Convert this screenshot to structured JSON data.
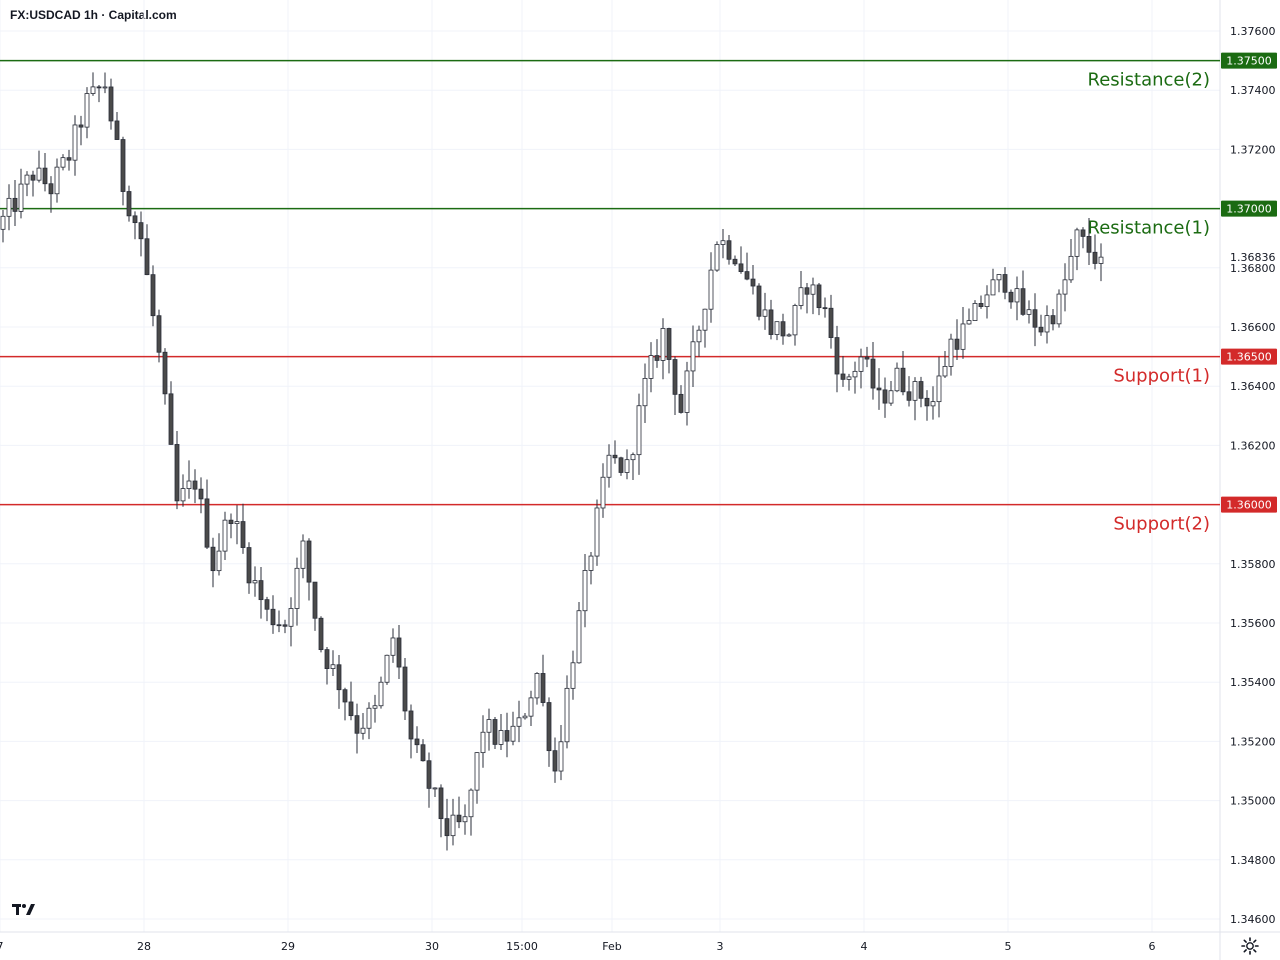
{
  "header": {
    "title": "FX:USDCAD 1h · Capital.com"
  },
  "chart_data": {
    "type": "candlestick",
    "title": "FX:USDCAD 1h · Capital.com",
    "ylim": [
      1.3455,
      1.3765
    ],
    "y_ticks": [
      "1.37600",
      "1.37400",
      "1.37200",
      "1.36800",
      "1.36600",
      "1.36400",
      "1.36200",
      "1.35800",
      "1.35600",
      "1.35400",
      "1.35200",
      "1.35000",
      "1.34800",
      "1.34600"
    ],
    "y_tick_values": [
      1.376,
      1.374,
      1.372,
      1.368,
      1.366,
      1.364,
      1.362,
      1.358,
      1.356,
      1.354,
      1.352,
      1.35,
      1.348,
      1.346
    ],
    "x_ticks": [
      {
        "label": "7",
        "index": 0
      },
      {
        "label": "28",
        "index": 24
      },
      {
        "label": "29",
        "index": 48
      },
      {
        "label": "30",
        "index": 72
      },
      {
        "label": "15:00",
        "index": 87
      },
      {
        "label": "Feb",
        "index": 102
      },
      {
        "label": "3",
        "index": 120
      },
      {
        "label": "4",
        "index": 144
      },
      {
        "label": "5",
        "index": 168
      },
      {
        "label": "6",
        "index": 192
      }
    ],
    "levels": [
      {
        "name": "Resistance(2)",
        "value": 1.375,
        "value_label": "1.37500",
        "color": "#1b6b12"
      },
      {
        "name": "Resistance(1)",
        "value": 1.37,
        "value_label": "1.37000",
        "color": "#1b6b12"
      },
      {
        "name": "Support(1)",
        "value": 1.365,
        "value_label": "1.36500",
        "color": "#d32a2a"
      },
      {
        "name": "Support(2)",
        "value": 1.36,
        "value_label": "1.36000",
        "color": "#d32a2a"
      }
    ],
    "last_price": {
      "value": 1.36836,
      "label": "1.36836"
    },
    "keypoints": [
      [
        0,
        1.3693
      ],
      [
        3,
        1.3702
      ],
      [
        6,
        1.3712
      ],
      [
        9,
        1.3707
      ],
      [
        12,
        1.3718
      ],
      [
        15,
        1.3736
      ],
      [
        18,
        1.3742
      ],
      [
        21,
        1.3708
      ],
      [
        24,
        1.369
      ],
      [
        27,
        1.365
      ],
      [
        30,
        1.36
      ],
      [
        33,
        1.3608
      ],
      [
        36,
        1.358
      ],
      [
        39,
        1.3598
      ],
      [
        42,
        1.3578
      ],
      [
        45,
        1.3563
      ],
      [
        48,
        1.356
      ],
      [
        51,
        1.3585
      ],
      [
        54,
        1.3552
      ],
      [
        57,
        1.354
      ],
      [
        60,
        1.3525
      ],
      [
        63,
        1.353
      ],
      [
        66,
        1.3555
      ],
      [
        69,
        1.352
      ],
      [
        72,
        1.3505
      ],
      [
        75,
        1.349
      ],
      [
        78,
        1.3492
      ],
      [
        81,
        1.3525
      ],
      [
        84,
        1.352
      ],
      [
        87,
        1.3525
      ],
      [
        90,
        1.3543
      ],
      [
        93,
        1.351
      ],
      [
        96,
        1.355
      ],
      [
        99,
        1.3585
      ],
      [
        102,
        1.3615
      ],
      [
        105,
        1.3612
      ],
      [
        108,
        1.364
      ],
      [
        111,
        1.3658
      ],
      [
        114,
        1.3632
      ],
      [
        117,
        1.366
      ],
      [
        120,
        1.369
      ],
      [
        123,
        1.3685
      ],
      [
        126,
        1.3672
      ],
      [
        129,
        1.366
      ],
      [
        132,
        1.3658
      ],
      [
        135,
        1.3675
      ],
      [
        138,
        1.3665
      ],
      [
        141,
        1.364
      ],
      [
        144,
        1.365
      ],
      [
        147,
        1.3635
      ],
      [
        150,
        1.3643
      ],
      [
        153,
        1.3638
      ],
      [
        156,
        1.3635
      ],
      [
        159,
        1.3655
      ],
      [
        162,
        1.366
      ],
      [
        165,
        1.3672
      ],
      [
        168,
        1.3676
      ],
      [
        171,
        1.3665
      ],
      [
        174,
        1.366
      ],
      [
        177,
        1.3668
      ],
      [
        180,
        1.369
      ],
      [
        183,
        1.3684
      ]
    ],
    "candle_count": 184,
    "x_index_max": 198
  }
}
